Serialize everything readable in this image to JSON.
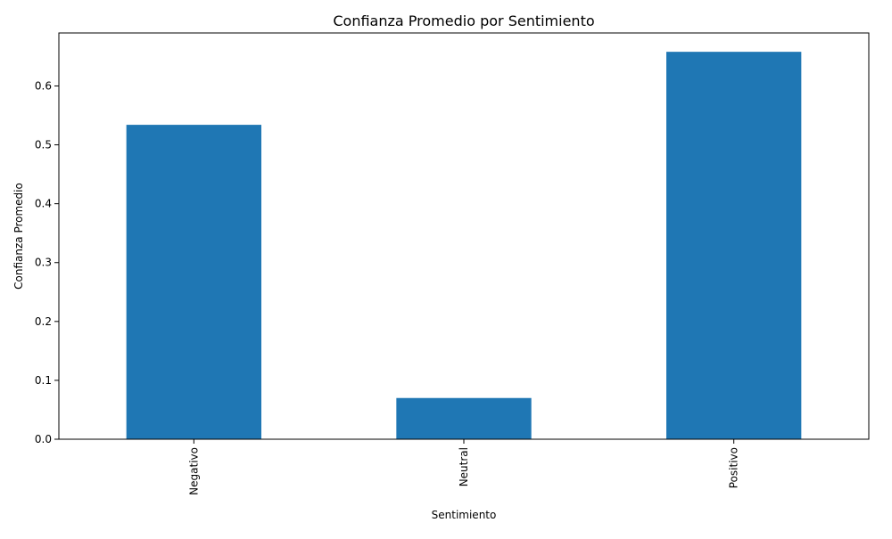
{
  "chart_data": {
    "type": "bar",
    "title": "Confianza Promedio por Sentimiento",
    "xlabel": "Sentimiento",
    "ylabel": "Confianza Promedio",
    "categories": [
      "Negativo",
      "Neutral",
      "Positivo"
    ],
    "values": [
      0.534,
      0.07,
      0.658
    ],
    "ylim": [
      0,
      0.69
    ],
    "yticks": [
      0.0,
      0.1,
      0.2,
      0.3,
      0.4,
      0.5,
      0.6
    ],
    "ytick_labels": [
      "0.0",
      "0.1",
      "0.2",
      "0.3",
      "0.4",
      "0.5",
      "0.6"
    ],
    "grid": false,
    "legend": "none",
    "bar_color": "#1f77b4",
    "xtick_rotation": "vertical"
  }
}
